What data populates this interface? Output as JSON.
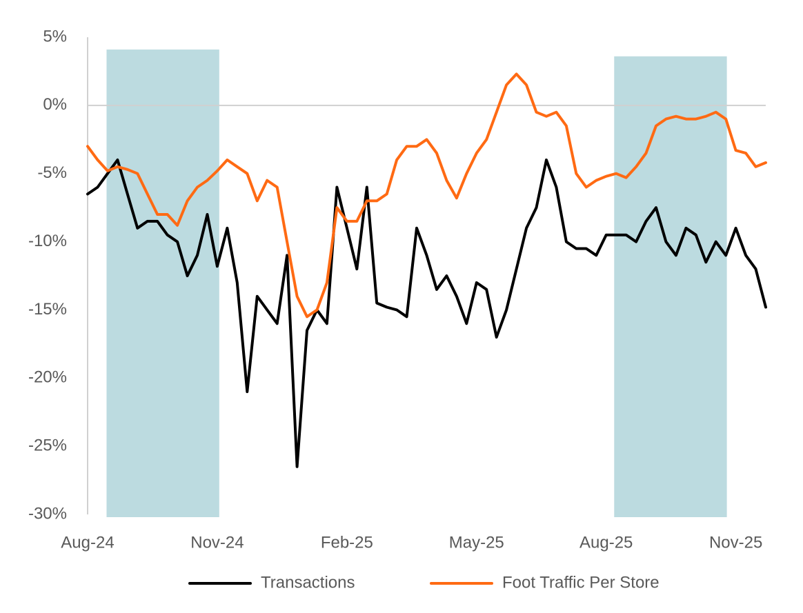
{
  "chart_data": {
    "type": "line",
    "ylim": [
      -30,
      5
    ],
    "yticks": [
      {
        "value": 5,
        "label": "5%"
      },
      {
        "value": 0,
        "label": "0%"
      },
      {
        "value": -5,
        "label": "-5%"
      },
      {
        "value": -10,
        "label": "-10%"
      },
      {
        "value": -15,
        "label": "-15%"
      },
      {
        "value": -20,
        "label": "-20%"
      },
      {
        "value": -25,
        "label": "-25%"
      },
      {
        "value": -30,
        "label": "-30%"
      }
    ],
    "xlim": [
      0,
      68
    ],
    "xticks": [
      {
        "value": 0,
        "label": "Aug-24"
      },
      {
        "value": 13,
        "label": "Nov-24"
      },
      {
        "value": 26,
        "label": "Feb-25"
      },
      {
        "value": 39,
        "label": "May-25"
      },
      {
        "value": 52,
        "label": "Aug-25"
      },
      {
        "value": 65,
        "label": "Nov-25"
      }
    ],
    "zero_line": true,
    "band_color": "#bcdbe0",
    "bands": [
      {
        "start": 1.9,
        "end": 13.2,
        "top": 4.1
      },
      {
        "start": 52.8,
        "end": 64.1,
        "top": 3.6
      }
    ],
    "legend": "bottom",
    "series": [
      {
        "name": "Transactions",
        "color": "#000000",
        "values": [
          -6.5,
          -6,
          -5,
          -4,
          -6.5,
          -9,
          -8.5,
          -8.5,
          -9.5,
          -10,
          -12.5,
          -11,
          -8,
          -11.8,
          -9,
          -13,
          -21,
          -14,
          -15,
          -16,
          -11,
          -26.5,
          -16.5,
          -15,
          -16,
          -6,
          -9,
          -12,
          -6,
          -14.5,
          -14.8,
          -15,
          -15.5,
          -9,
          -11,
          -13.5,
          -12.5,
          -14,
          -16,
          -13,
          -13.5,
          -17,
          -15,
          -12,
          -9,
          -7.5,
          -4,
          -6,
          -10,
          -10.5,
          -10.5,
          -11,
          -9.5,
          -9.5,
          -9.5,
          -10,
          -8.5,
          -7.5,
          -10,
          -11,
          -9,
          -9.5,
          -11.5,
          -10,
          -11,
          -9,
          -11,
          -12,
          -14.8
        ]
      },
      {
        "name": "Foot Traffic Per Store",
        "color": "#ff6a13",
        "values": [
          -3,
          -4,
          -4.8,
          -4.5,
          -4.7,
          -5,
          -6.5,
          -8,
          -8,
          -8.8,
          -7,
          -6,
          -5.5,
          -4.8,
          -4,
          -4.5,
          -5,
          -7,
          -5.5,
          -6,
          -10,
          -14,
          -15.5,
          -15,
          -13,
          -7.5,
          -8.5,
          -8.5,
          -7,
          -7,
          -6.5,
          -4,
          -3,
          -3,
          -2.5,
          -3.5,
          -5.5,
          -6.8,
          -5,
          -3.5,
          -2.5,
          -0.5,
          1.5,
          2.3,
          1.5,
          -0.5,
          -0.8,
          -0.5,
          -1.5,
          -5,
          -6,
          -5.5,
          -5.2,
          -5,
          -5.3,
          -4.5,
          -3.5,
          -1.5,
          -1,
          -0.8,
          -1,
          -1,
          -0.8,
          -0.5,
          -1,
          -3.3,
          -3.5,
          -4.5,
          -4.2
        ]
      }
    ]
  }
}
